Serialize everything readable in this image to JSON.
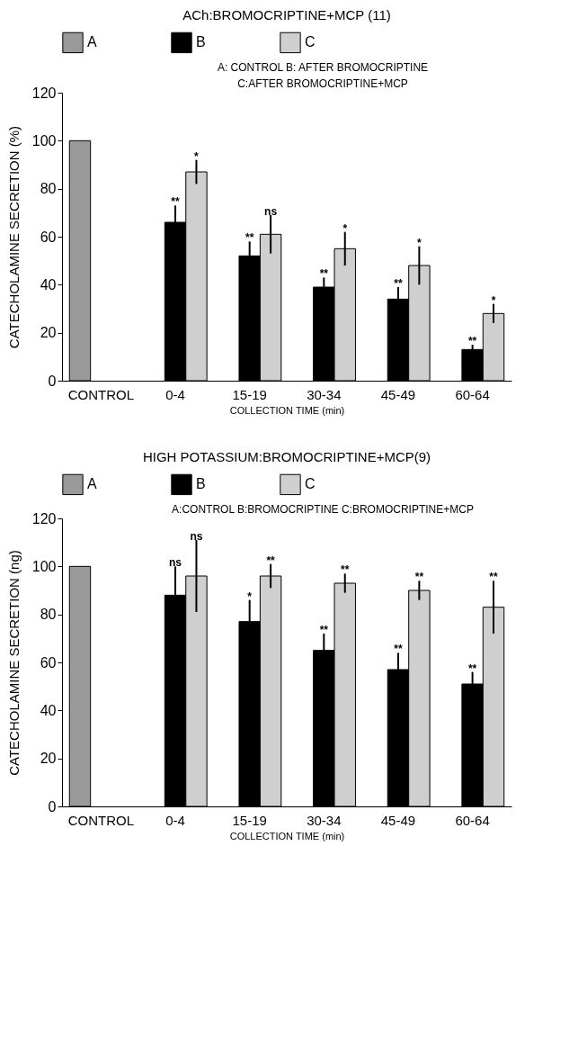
{
  "chart_data": [
    {
      "type": "bar",
      "title": "ACh:BROMOCRIPTINE+MCP (11)",
      "xlabel": "COLLECTION TIME (min)",
      "ylabel": "CATECHOLAMINE SECRETION (%)",
      "categories": [
        "CONTROL",
        "0-4",
        "15-19",
        "30-34",
        "45-49",
        "60-64"
      ],
      "series": [
        {
          "name": "A",
          "color": "#9a9a9a",
          "values": [
            100,
            null,
            null,
            null,
            null,
            null
          ]
        },
        {
          "name": "B",
          "color": "#000000",
          "values": [
            null,
            66,
            52,
            39,
            34,
            13
          ],
          "errors": [
            null,
            7,
            6,
            4,
            5,
            2
          ],
          "value_labels": [
            null,
            "**",
            "**",
            "**",
            "**",
            "**"
          ]
        },
        {
          "name": "C",
          "color": "#cfcfcf",
          "values": [
            null,
            87,
            61,
            55,
            48,
            28
          ],
          "errors": [
            null,
            5,
            8,
            7,
            8,
            4
          ],
          "value_labels": [
            null,
            "*",
            "ns",
            "*",
            "*",
            "*"
          ]
        }
      ],
      "ylim": [
        0,
        120
      ],
      "yticks": [
        0,
        20,
        40,
        60,
        80,
        100,
        120
      ],
      "grid": false,
      "legend": "top",
      "annotations": [
        "A: CONTROL   B: AFTER BROMOCRIPTINE",
        "C:AFTER BROMOCRIPTINE+MCP"
      ]
    },
    {
      "type": "bar",
      "title": "HIGH POTASSIUM:BROMOCRIPTINE+MCP(9)",
      "xlabel": "COLLECTION TIME (min)",
      "ylabel": "CATECHOLAMINE SECRETION (ng)",
      "categories": [
        "CONTROL",
        "0-4",
        "15-19",
        "30-34",
        "45-49",
        "60-64"
      ],
      "series": [
        {
          "name": "A",
          "color": "#9a9a9a",
          "values": [
            100,
            null,
            null,
            null,
            null,
            null
          ]
        },
        {
          "name": "B",
          "color": "#000000",
          "values": [
            null,
            88,
            77,
            65,
            57,
            51
          ],
          "errors": [
            null,
            12,
            9,
            7,
            7,
            5
          ],
          "value_labels": [
            null,
            "ns",
            "*",
            "**",
            "**",
            "**"
          ]
        },
        {
          "name": "C",
          "color": "#cfcfcf",
          "values": [
            null,
            96,
            96,
            93,
            90,
            83
          ],
          "errors": [
            null,
            15,
            5,
            4,
            4,
            11
          ],
          "value_labels": [
            null,
            "ns",
            "**",
            "**",
            "**",
            "**"
          ]
        }
      ],
      "ylim": [
        0,
        120
      ],
      "yticks": [
        0,
        20,
        40,
        60,
        80,
        100,
        120
      ],
      "grid": false,
      "legend": "top",
      "annotations": [
        "A:CONTROL    B:BROMOCRIPTINE      C:BROMOCRIPTINE+MCP"
      ]
    }
  ]
}
